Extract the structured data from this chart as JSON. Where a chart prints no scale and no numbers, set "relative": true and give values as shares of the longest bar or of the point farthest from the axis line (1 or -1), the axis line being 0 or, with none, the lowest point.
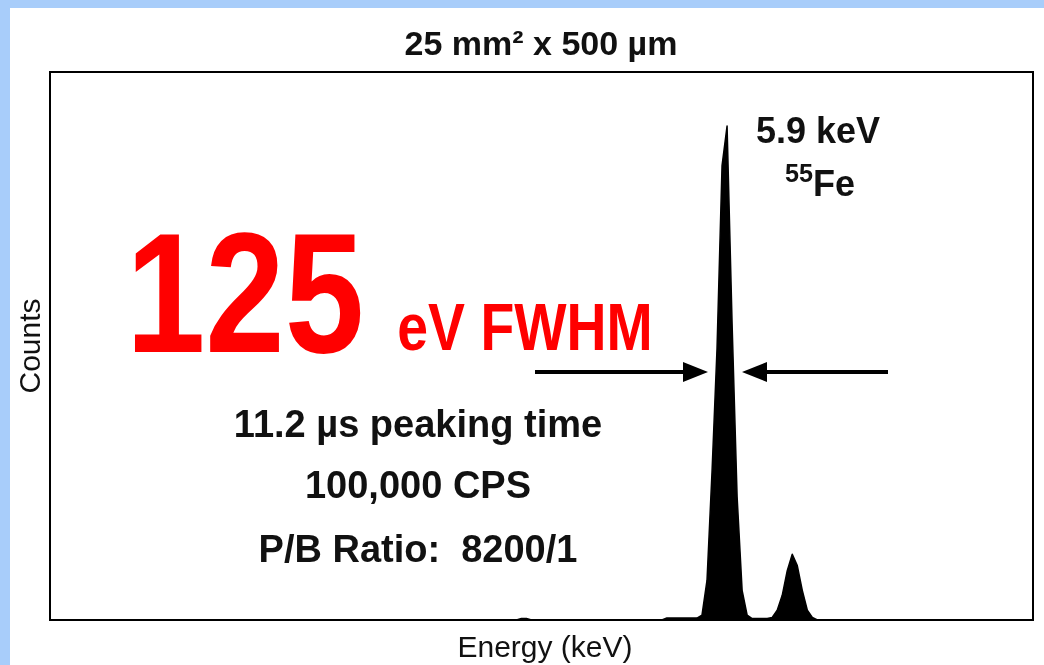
{
  "chart_data": {
    "type": "area",
    "relative": true,
    "title": "25 mm² x 500 µm",
    "xlabel": "Energy (keV)",
    "ylabel": "Counts",
    "categories": [
      null,
      null,
      null,
      null,
      null,
      null,
      null,
      null,
      null,
      null,
      null,
      null,
      null,
      null,
      null,
      null,
      null,
      null,
      null,
      null,
      null,
      null,
      null,
      null,
      null,
      null,
      null,
      null,
      null,
      null,
      null,
      null,
      null,
      null,
      null,
      null,
      null,
      null,
      null,
      null,
      null,
      null,
      null,
      null,
      null,
      null,
      null,
      null,
      null,
      null,
      null,
      null,
      null,
      null,
      null,
      null,
      null,
      null,
      null,
      null,
      null,
      null,
      null,
      null,
      null,
      null,
      null,
      null,
      null,
      null,
      null,
      null,
      null,
      null,
      null,
      null,
      null,
      null,
      null,
      null,
      null,
      null,
      null,
      null,
      null,
      null,
      null,
      null,
      null,
      null,
      null,
      null,
      null,
      null,
      null,
      null,
      null,
      null,
      null,
      null,
      null,
      null,
      null,
      null,
      null,
      null,
      null,
      null,
      null,
      null,
      null,
      null,
      null,
      null,
      null,
      null,
      null,
      null,
      null,
      null,
      null,
      null,
      null,
      null,
      null,
      null,
      null,
      null,
      null,
      null,
      null,
      null,
      null,
      null,
      null,
      null,
      null,
      null,
      null,
      null,
      null,
      null,
      null,
      null,
      null,
      null,
      null,
      null,
      null,
      null,
      null,
      null,
      null,
      null,
      null,
      null,
      null,
      null,
      null,
      null,
      null,
      null,
      null,
      null,
      null,
      null,
      null,
      null,
      null,
      null,
      null,
      null,
      null,
      null,
      null,
      null,
      null,
      null,
      null,
      null,
      null,
      null,
      null,
      null,
      null,
      null,
      null,
      null,
      null,
      null,
      null,
      null,
      null,
      null,
      null,
      null,
      null
    ],
    "series": [
      {
        "color": "#000000",
        "values": [
          0,
          0,
          0,
          0,
          0,
          0,
          0,
          0,
          0,
          0,
          0,
          0,
          0,
          0,
          0,
          0,
          0,
          0,
          0,
          0,
          0,
          0,
          0,
          0,
          0,
          0,
          0,
          0,
          0,
          0,
          0,
          0,
          0,
          0,
          0,
          0,
          0,
          0,
          0,
          0,
          0,
          0,
          0,
          0,
          0,
          0,
          0,
          0,
          0,
          0,
          0,
          0,
          0,
          0,
          0,
          0,
          0,
          0,
          0,
          0,
          0,
          0,
          0,
          0,
          0,
          0,
          0,
          0,
          0,
          0,
          0,
          0,
          0,
          0,
          0,
          0,
          0,
          0,
          0,
          0,
          0,
          0,
          0,
          0,
          0,
          0,
          0,
          0,
          0,
          0,
          0,
          0,
          0,
          0,
          0.003,
          0.003,
          0,
          0,
          0,
          0,
          0,
          0,
          0,
          0,
          0,
          0,
          0,
          0,
          0,
          0,
          0,
          0,
          0,
          0,
          0,
          0,
          0,
          0,
          0,
          0,
          0,
          0,
          0,
          0.004,
          0.004,
          0.004,
          0.004,
          0.004,
          0.004,
          0.004,
          0.01,
          0.08,
          0.3,
          0.55,
          0.92,
          1,
          0.6,
          0.25,
          0.06,
          0.01,
          0.003,
          0.003,
          0.003,
          0.003,
          0.005,
          0.02,
          0.05,
          0.1,
          0.133,
          0.11,
          0.06,
          0.02,
          0.005,
          0,
          0,
          0,
          0,
          0,
          0,
          0,
          0,
          0,
          0,
          0,
          0,
          0,
          0,
          0,
          0,
          0,
          0,
          0,
          0,
          0,
          0,
          0,
          0,
          0,
          0,
          0,
          0,
          0,
          0,
          0,
          0,
          0,
          0,
          0,
          0,
          0,
          0,
          0,
          0,
          0,
          0,
          0,
          0
        ]
      }
    ],
    "annotations": [
      "5.9 keV",
      "$^{55}$Fe",
      "125",
      "eV FWHM",
      "11.2 µs peaking time",
      "100,000 CPS",
      "P/B Ratio:  8200/1"
    ]
  }
}
